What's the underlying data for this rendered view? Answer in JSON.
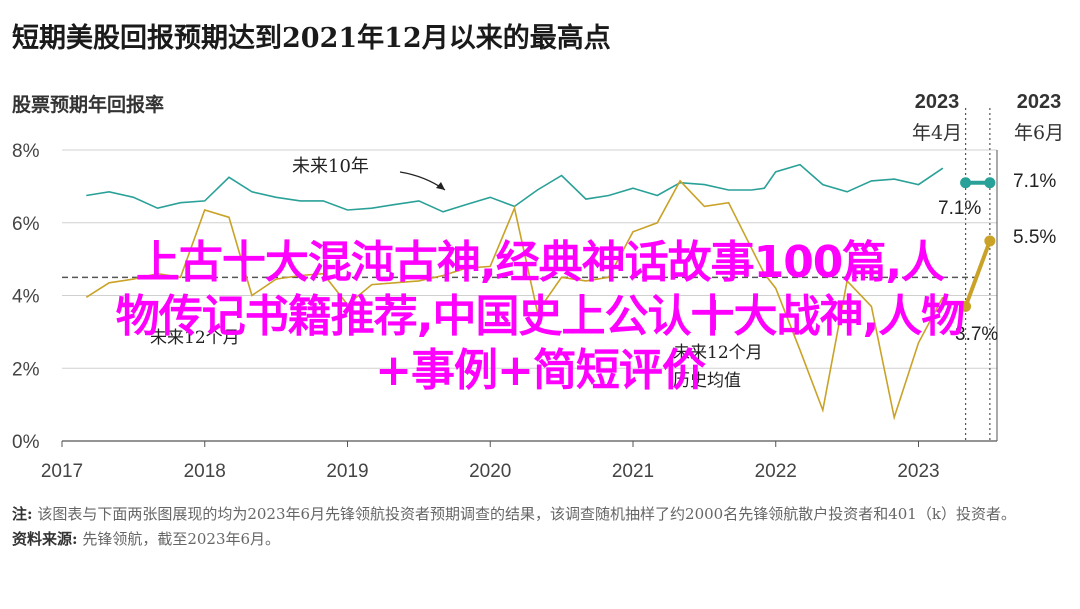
{
  "title": "短期美股回报预期达到2021年12月以来的最高点",
  "chart_data": {
    "type": "line",
    "ylabel": "股票预期年回报率",
    "ylim": [
      0,
      8
    ],
    "yticks": [
      "0%",
      "2%",
      "4%",
      "6%",
      "8%"
    ],
    "xlim": [
      2017,
      2023.55
    ],
    "xticks": [
      "2017",
      "2018",
      "2019",
      "2020",
      "2021",
      "2022",
      "2023"
    ],
    "series": [
      {
        "name": "未来10年",
        "color": "#2aa198",
        "points": [
          [
            2017.17,
            6.75
          ],
          [
            2017.33,
            6.85
          ],
          [
            2017.5,
            6.7
          ],
          [
            2017.67,
            6.4
          ],
          [
            2017.83,
            6.55
          ],
          [
            2018.0,
            6.6
          ],
          [
            2018.17,
            7.25
          ],
          [
            2018.33,
            6.85
          ],
          [
            2018.5,
            6.7
          ],
          [
            2018.67,
            6.6
          ],
          [
            2018.83,
            6.6
          ],
          [
            2019.0,
            6.35
          ],
          [
            2019.17,
            6.4
          ],
          [
            2019.33,
            6.5
          ],
          [
            2019.5,
            6.6
          ],
          [
            2019.67,
            6.3
          ],
          [
            2019.83,
            6.5
          ],
          [
            2020.0,
            6.7
          ],
          [
            2020.17,
            6.45
          ],
          [
            2020.33,
            6.9
          ],
          [
            2020.5,
            7.3
          ],
          [
            2020.67,
            6.65
          ],
          [
            2020.83,
            6.75
          ],
          [
            2021.0,
            6.95
          ],
          [
            2021.17,
            6.75
          ],
          [
            2021.33,
            7.1
          ],
          [
            2021.5,
            7.05
          ],
          [
            2021.67,
            6.9
          ],
          [
            2021.83,
            6.9
          ],
          [
            2021.92,
            6.95
          ],
          [
            2022.0,
            7.4
          ],
          [
            2022.17,
            7.6
          ],
          [
            2022.33,
            7.05
          ],
          [
            2022.5,
            6.85
          ],
          [
            2022.67,
            7.15
          ],
          [
            2022.83,
            7.2
          ],
          [
            2023.0,
            7.05
          ],
          [
            2023.17,
            7.5
          ],
          [
            2023.33,
            7.1
          ],
          [
            2023.5,
            7.1
          ]
        ]
      },
      {
        "name": "未来12个月",
        "color": "#c9a227",
        "points": [
          [
            2017.17,
            3.95
          ],
          [
            2017.33,
            4.35
          ],
          [
            2017.5,
            4.45
          ],
          [
            2017.67,
            4.6
          ],
          [
            2017.83,
            4.5
          ],
          [
            2018.0,
            6.35
          ],
          [
            2018.17,
            6.15
          ],
          [
            2018.33,
            4.0
          ],
          [
            2018.5,
            4.45
          ],
          [
            2018.67,
            4.55
          ],
          [
            2018.83,
            4.6
          ],
          [
            2019.0,
            3.75
          ],
          [
            2019.17,
            4.3
          ],
          [
            2019.33,
            4.35
          ],
          [
            2019.5,
            4.4
          ],
          [
            2019.67,
            4.55
          ],
          [
            2019.83,
            4.75
          ],
          [
            2020.0,
            4.8
          ],
          [
            2020.17,
            6.4
          ],
          [
            2020.33,
            3.55
          ],
          [
            2020.5,
            4.5
          ],
          [
            2020.67,
            4.4
          ],
          [
            2020.83,
            4.5
          ],
          [
            2021.0,
            5.75
          ],
          [
            2021.17,
            6.0
          ],
          [
            2021.33,
            7.15
          ],
          [
            2021.5,
            6.45
          ],
          [
            2021.67,
            6.55
          ],
          [
            2021.83,
            5.3
          ],
          [
            2021.92,
            4.6
          ],
          [
            2022.0,
            4.2
          ],
          [
            2022.17,
            2.5
          ],
          [
            2022.33,
            0.85
          ],
          [
            2022.5,
            4.4
          ],
          [
            2022.67,
            3.7
          ],
          [
            2022.83,
            0.65
          ],
          [
            2023.0,
            2.7
          ],
          [
            2023.17,
            3.95
          ],
          [
            2023.33,
            3.7
          ],
          [
            2023.5,
            5.5
          ]
        ]
      }
    ],
    "avg_line": {
      "name": "未来12个月历史均值",
      "value": 4.5
    },
    "highlights": [
      {
        "label_year": "2023",
        "label_month": "年4月",
        "x": 2023.33
      },
      {
        "label_year": "2023",
        "label_month": "年6月",
        "x": 2023.5
      }
    ],
    "annotations": {
      "ten_year_label": "未来10年",
      "twelve_month_label": "未来12个月",
      "avg_label_1": "未来12个月",
      "avg_label_2": "历史均值",
      "apr_ten": "7.1%",
      "jun_ten": "7.1%",
      "apr_twelve": "3.7%",
      "jun_twelve": "5.5%"
    }
  },
  "notes": {
    "note_label": "注:",
    "note_text": "该图表与下面两张图展现的均为2023年6月先锋领航投资者预期调查的结果，该调查随机抽样了约2000名先锋领航散户投资者和401（k）投资者。",
    "source_label": "资料来源:",
    "source_text": "先锋领航，截至2023年6月。"
  },
  "overlay": {
    "line1": "上古十大混沌古神,经典神话故事100篇,人",
    "line2": "物传记书籍推荐,中国史上公认十大战神,人物",
    "line3": "+事例+简短评价"
  },
  "colors": {
    "ten_year": "#2aa198",
    "twelve_month": "#c9a227",
    "overlay": "#ff00ff",
    "avg_line": "#555555"
  }
}
